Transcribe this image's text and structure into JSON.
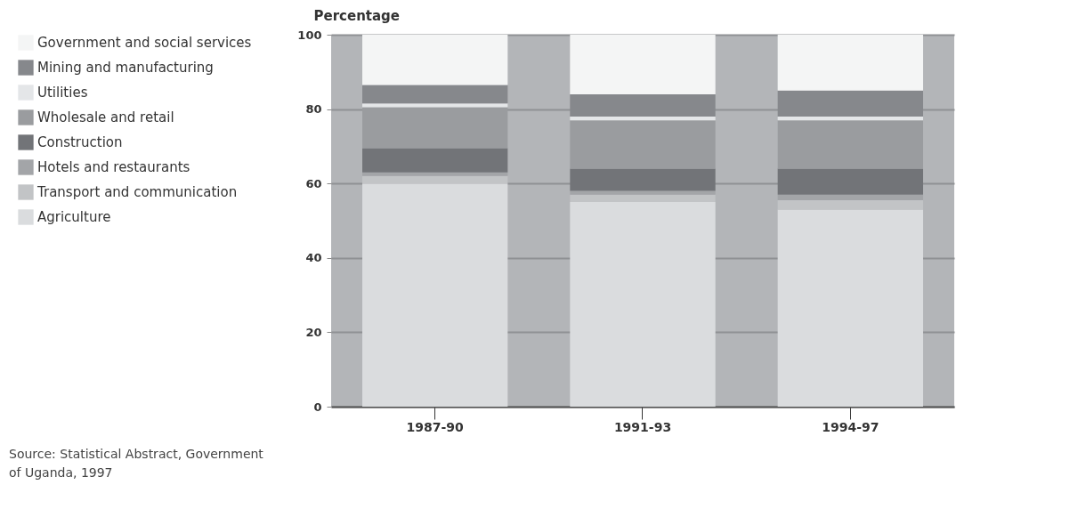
{
  "chart_data": {
    "type": "bar",
    "stacked": true,
    "ylabel": "Percentage",
    "categories": [
      "1987-90",
      "1991-93",
      "1994-97"
    ],
    "ylim": [
      0,
      100
    ],
    "yticks": [
      0,
      20,
      40,
      60,
      80,
      100
    ],
    "grid": "y",
    "legend": "left",
    "series": [
      {
        "name": "Agriculture",
        "color": "#dadcde",
        "values": [
          60,
          55,
          53
        ]
      },
      {
        "name": "Transport and communication",
        "color": "#c2c4c6",
        "values": [
          2,
          2,
          2.5
        ]
      },
      {
        "name": "Hotels and restaurants",
        "color": "#a3a5a8",
        "values": [
          1,
          1,
          1.5
        ]
      },
      {
        "name": "Construction",
        "color": "#727478",
        "values": [
          6.5,
          6,
          7
        ]
      },
      {
        "name": "Wholesale and retail",
        "color": "#9a9c9f",
        "values": [
          11,
          13,
          13
        ]
      },
      {
        "name": "Utilities",
        "color": "#e4e6e8",
        "values": [
          1,
          1,
          1
        ]
      },
      {
        "name": "Mining and manufacturing",
        "color": "#86888c",
        "values": [
          5,
          6,
          7
        ]
      },
      {
        "name": "Government and social services",
        "color": "#f4f5f5",
        "values": [
          13.5,
          16,
          15
        ]
      }
    ],
    "annotations": [
      "Source: Statistical Abstract, Government of Uganda, 1997"
    ]
  }
}
